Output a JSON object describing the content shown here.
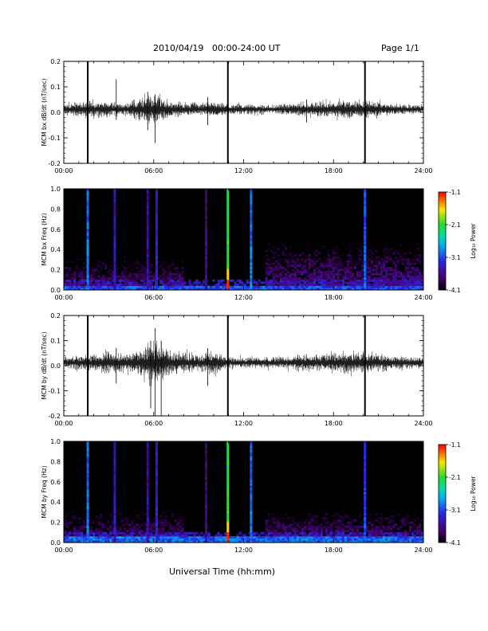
{
  "header": {
    "title": "2010/04/19   00:00-24:00 UT",
    "page": "Page 1/1"
  },
  "x_axis_title": "Universal Time (hh:mm)",
  "chart_data": [
    {
      "type": "line",
      "ylabel": "MCM bx dB/dt (nT/sec)",
      "ylim": [
        -0.2,
        0.2
      ],
      "yticks": [
        "0.2",
        "0.1",
        "0.0",
        "-0.1",
        "-0.2"
      ],
      "xlim_hours": [
        0,
        24
      ],
      "xticks": [
        "00:00",
        "06:00",
        "12:00",
        "18:00",
        "24:00"
      ],
      "series": [
        {
          "amplitude_envelope": {
            "hours": [
              0,
              2,
              3,
              4,
              5,
              6,
              7,
              9,
              10,
              11,
              12,
              14,
              16,
              18,
              20,
              22,
              24
            ],
            "amp": [
              0.02,
              0.03,
              0.025,
              0.02,
              0.04,
              0.06,
              0.03,
              0.02,
              0.03,
              0.02,
              0.02,
              0.015,
              0.025,
              0.03,
              0.035,
              0.02,
              0.015
            ]
          },
          "spikes": [
            {
              "hour": 1.6,
              "min": -0.2,
              "max": 0.2
            },
            {
              "hour": 10.95,
              "min": -0.2,
              "max": 0.2
            },
            {
              "hour": 20.1,
              "min": -0.2,
              "max": 0.2
            },
            {
              "hour": 3.5,
              "min": -0.03,
              "max": 0.13
            },
            {
              "hour": 6.1,
              "min": -0.12,
              "max": 0.07
            },
            {
              "hour": 5.6,
              "min": -0.07,
              "max": 0.08
            },
            {
              "hour": 9.6,
              "min": -0.05,
              "max": 0.06
            },
            {
              "hour": 16.2,
              "min": -0.04,
              "max": 0.05
            }
          ]
        }
      ],
      "grid": false
    },
    {
      "type": "heatmap",
      "ylabel": "MCM bx Freq (Hz)",
      "ylim": [
        0,
        1.0
      ],
      "yticks": [
        "1.0",
        "0.8",
        "0.6",
        "0.4",
        "0.2",
        "0.0"
      ],
      "xlim_hours": [
        0,
        24
      ],
      "xticks": [
        "00:00",
        "06:00",
        "12:00",
        "18:00",
        "24:00"
      ],
      "colorbar": {
        "label": "Log₁₀ Power",
        "range": [
          -4.1,
          -1.1
        ],
        "ticks": [
          "-1.1",
          "-2.1",
          "-3.1",
          "-4.1"
        ]
      },
      "bright_columns": [
        {
          "hour": 1.6,
          "level": -2.9
        },
        {
          "hour": 3.4,
          "level": -3.4
        },
        {
          "hour": 5.6,
          "level": -3.5
        },
        {
          "hour": 6.2,
          "level": -3.3
        },
        {
          "hour": 9.5,
          "level": -3.6
        },
        {
          "hour": 10.95,
          "level": -2.1
        },
        {
          "hour": 12.5,
          "level": -2.9
        },
        {
          "hour": 20.1,
          "level": -3.0
        }
      ],
      "activity_regions": [
        {
          "from": 0,
          "to": 8,
          "fmax": 0.35,
          "level": -3.7
        },
        {
          "from": 13.5,
          "to": 24,
          "fmax": 0.45,
          "level": -3.6
        }
      ],
      "low_freq_band": {
        "fmax": 0.05,
        "level": -3.1
      }
    },
    {
      "type": "line",
      "ylabel": "MCM by dB/dt (nT/sec)",
      "ylim": [
        -0.2,
        0.2
      ],
      "yticks": [
        "0.2",
        "0.1",
        "0.0",
        "-0.1",
        "-0.2"
      ],
      "xlim_hours": [
        0,
        24
      ],
      "xticks": [
        "00:00",
        "06:00",
        "12:00",
        "18:00",
        "24:00"
      ],
      "series": [
        {
          "amplitude_envelope": {
            "hours": [
              0,
              2,
              3,
              4,
              5,
              6,
              7,
              9,
              10,
              11,
              12,
              14,
              16,
              18,
              20,
              22,
              24
            ],
            "amp": [
              0.02,
              0.03,
              0.04,
              0.03,
              0.05,
              0.08,
              0.05,
              0.03,
              0.04,
              0.02,
              0.02,
              0.02,
              0.03,
              0.035,
              0.04,
              0.025,
              0.02
            ]
          },
          "spikes": [
            {
              "hour": 1.6,
              "min": -0.2,
              "max": 0.2
            },
            {
              "hour": 10.95,
              "min": -0.2,
              "max": 0.2
            },
            {
              "hour": 20.1,
              "min": -0.2,
              "max": 0.2
            },
            {
              "hour": 6.1,
              "min": -0.2,
              "max": 0.15
            },
            {
              "hour": 5.8,
              "min": -0.17,
              "max": 0.1
            },
            {
              "hour": 6.5,
              "min": -0.2,
              "max": 0.1
            },
            {
              "hour": 9.6,
              "min": -0.08,
              "max": 0.07
            },
            {
              "hour": 3.5,
              "min": -0.07,
              "max": 0.07
            }
          ]
        }
      ],
      "grid": false
    },
    {
      "type": "heatmap",
      "ylabel": "MCM by Freq (Hz)",
      "ylim": [
        0,
        1.0
      ],
      "yticks": [
        "1.0",
        "0.8",
        "0.6",
        "0.4",
        "0.2",
        "0.0"
      ],
      "xlim_hours": [
        0,
        24
      ],
      "xticks": [
        "00:00",
        "06:00",
        "12:00",
        "18:00",
        "24:00"
      ],
      "colorbar": {
        "label": "Log₁₀ Power",
        "range": [
          -4.1,
          -1.1
        ],
        "ticks": [
          "-1.1",
          "-2.1",
          "-3.1",
          "-4.1"
        ]
      },
      "bright_columns": [
        {
          "hour": 1.6,
          "level": -2.9
        },
        {
          "hour": 3.4,
          "level": -3.4
        },
        {
          "hour": 5.6,
          "level": -3.5
        },
        {
          "hour": 6.2,
          "level": -3.3
        },
        {
          "hour": 9.5,
          "level": -3.6
        },
        {
          "hour": 10.95,
          "level": -2.1
        },
        {
          "hour": 12.5,
          "level": -2.9
        },
        {
          "hour": 20.1,
          "level": -3.1
        }
      ],
      "activity_regions": [
        {
          "from": 0,
          "to": 8,
          "fmax": 0.35,
          "level": -3.7
        },
        {
          "from": 13.5,
          "to": 24,
          "fmax": 0.3,
          "level": -3.6
        }
      ],
      "low_freq_band": {
        "fmax": 0.06,
        "level": -3.0
      }
    }
  ]
}
